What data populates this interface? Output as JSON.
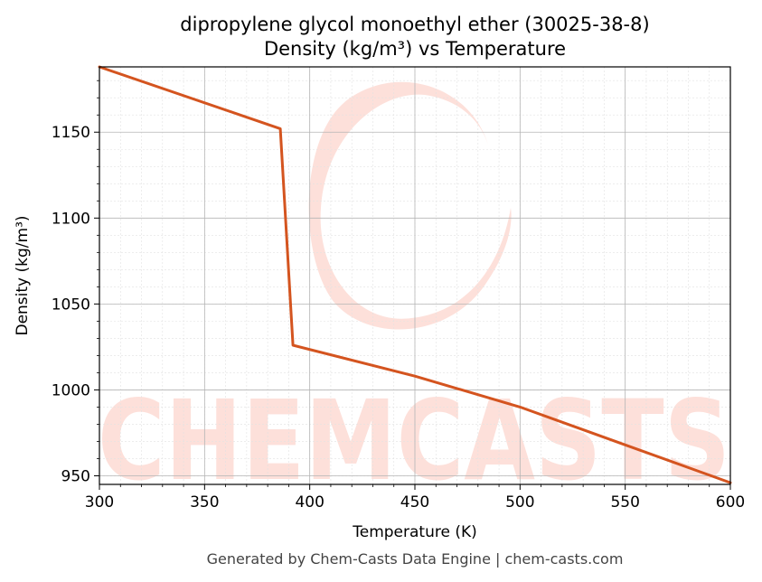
{
  "chart_data": {
    "type": "line",
    "title": "dipropylene glycol monoethyl ether (30025-38-8)",
    "subtitle": "Density (kg/m³) vs Temperature",
    "xlabel": "Temperature (K)",
    "ylabel": "Density (kg/m³)",
    "xlim": [
      300,
      600
    ],
    "ylim": [
      945,
      1188
    ],
    "xticks": [
      300,
      350,
      400,
      450,
      500,
      550,
      600
    ],
    "yticks": [
      950,
      1000,
      1050,
      1100,
      1150
    ],
    "grid": true,
    "line_color": "#d4541f",
    "series": [
      {
        "x": [
          300,
          386,
          392,
          450,
          500,
          550,
          600
        ],
        "y": [
          1188,
          1152,
          1026,
          1008,
          990,
          968,
          946
        ]
      }
    ]
  },
  "watermark": "CHEMCASTS",
  "footer": "Generated by Chem-Casts Data Engine | chem-casts.com"
}
